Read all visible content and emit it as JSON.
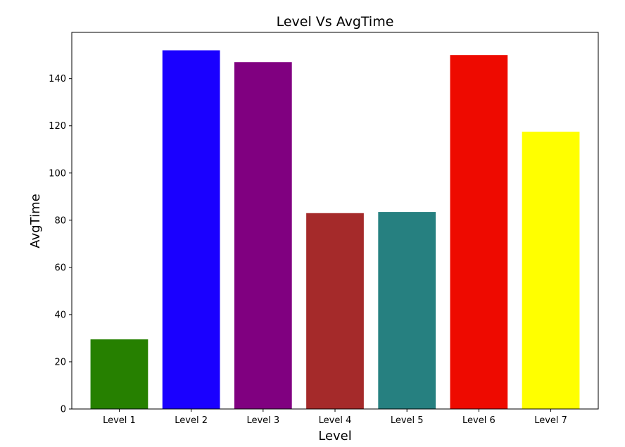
{
  "chart_data": {
    "type": "bar",
    "title": "Level Vs AvgTime",
    "xlabel": "Level",
    "ylabel": "AvgTime",
    "categories": [
      "Level 1",
      "Level 2",
      "Level 3",
      "Level 4",
      "Level 5",
      "Level 6",
      "Level 7"
    ],
    "values": [
      29.5,
      152,
      147,
      83,
      83.5,
      150,
      117.5
    ],
    "colors": [
      "#268000",
      "#1a00ff",
      "#800080",
      "#a52a2a",
      "#268080",
      "#ee0a00",
      "#ffff00"
    ],
    "ylim": [
      0,
      159.6
    ],
    "yticks": [
      0,
      20,
      40,
      60,
      80,
      100,
      120,
      140
    ],
    "grid": false,
    "legend": "none"
  }
}
